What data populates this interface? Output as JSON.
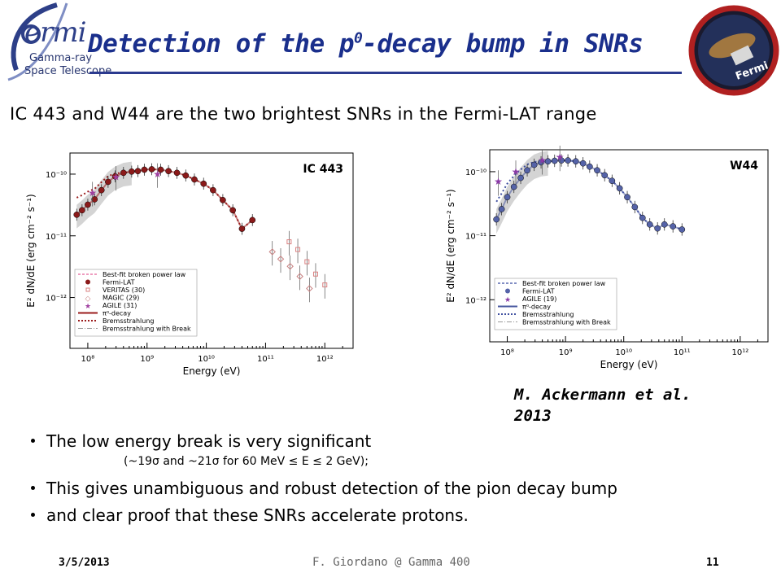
{
  "header": {
    "logo_text": "ermi",
    "logo_sub1": "Gamma-ray",
    "logo_sub2": "Space Telescope",
    "title_main": "Detection of the p",
    "title_sup": "0",
    "title_rest": "-decay bump in SNRs",
    "badge_text": "Fermi"
  },
  "subtitle": "IC 443 and W44 are the two brightest SNRs in the Fermi-LAT range",
  "chart_data": [
    {
      "type": "scatter",
      "title": "IC 443",
      "xlabel": "Energy (eV)",
      "ylabel": "E² dN/dE (erg cm⁻² s⁻¹)",
      "xscale": "log",
      "yscale": "log",
      "xlim": [
        50000000.0,
        3000000000000.0
      ],
      "ylim": [
        1.5e-13,
        2.2e-10
      ],
      "xticks": [
        "10⁸",
        "10⁹",
        "10¹⁰",
        "10¹¹",
        "10¹²"
      ],
      "yticks": [
        "10⁻¹⁰",
        "10⁻¹¹",
        "10⁻¹²"
      ],
      "legend_position": "bottom-left",
      "legend": [
        "Best-fit broken power law",
        "Fermi-LAT",
        "VERITAS (30)",
        "MAGIC (29)",
        "AGILE (31)",
        "π⁰-decay",
        "Bremsstrahlung",
        "Bremsstrahlung with Break"
      ],
      "colors": {
        "fermi": "#8b1a1a",
        "veritas": "#d98080",
        "magic": "#c88080",
        "agile": "#a040a0",
        "pion": "#9b1c1c",
        "brems": "#9b1c1c",
        "brems_break": "#999999",
        "band": "#cccccc",
        "bpl": "#e87aa8"
      },
      "series": [
        {
          "name": "Fermi-LAT",
          "x": [
            65000000.0,
            80000000.0,
            100000000.0,
            130000000.0,
            170000000.0,
            220000000.0,
            290000000.0,
            400000000.0,
            550000000.0,
            700000000.0,
            900000000.0,
            1200000000.0,
            1700000000.0,
            2300000000.0,
            3200000000.0,
            4500000000.0,
            6300000000.0,
            9000000000.0,
            13000000000.0,
            19000000000.0,
            28000000000.0,
            40000000000.0,
            60000000000.0
          ],
          "y": [
            2.2e-11,
            2.6e-11,
            3.2e-11,
            3.9e-11,
            5.5e-11,
            7.5e-11,
            9.2e-11,
            1.05e-10,
            1.1e-10,
            1.12e-10,
            1.18e-10,
            1.2e-10,
            1.18e-10,
            1.12e-10,
            1.05e-10,
            9.5e-11,
            8.2e-11,
            7e-11,
            5.5e-11,
            3.8e-11,
            2.6e-11,
            1.3e-11,
            1.8e-11
          ]
        },
        {
          "name": "VERITAS (30)",
          "x": [
            250000000000.0,
            350000000000.0,
            500000000000.0,
            700000000000.0,
            1000000000000.0
          ],
          "y": [
            8e-12,
            6e-12,
            3.8e-12,
            2.4e-12,
            1.6e-12
          ]
        },
        {
          "name": "MAGIC (29)",
          "x": [
            130000000000.0,
            180000000000.0,
            260000000000.0,
            380000000000.0,
            550000000000.0
          ],
          "y": [
            5.5e-12,
            4.2e-12,
            3.2e-12,
            2.2e-12,
            1.4e-12
          ]
        },
        {
          "name": "AGILE (31)",
          "x": [
            120000000.0,
            300000000.0,
            1500000000.0
          ],
          "y": [
            5e-11,
            9e-11,
            1e-10
          ]
        }
      ]
    },
    {
      "type": "scatter",
      "title": "W44",
      "xlabel": "Energy (eV)",
      "ylabel": "E² dN/dE (erg cm⁻² s⁻¹)",
      "xscale": "log",
      "yscale": "log",
      "xlim": [
        50000000.0,
        3000000000000.0
      ],
      "ylim": [
        2.2e-13,
        2.2e-10
      ],
      "xticks": [
        "10⁸",
        "10⁹",
        "10¹⁰",
        "10¹¹",
        "10¹²"
      ],
      "yticks": [
        "10⁻¹⁰",
        "10⁻¹¹",
        "10⁻¹²"
      ],
      "legend_position": "bottom-left",
      "legend": [
        "Best-fit broken power law",
        "Fermi-LAT",
        "AGILE (19)",
        "π⁰-decay",
        "Bremsstrahlung",
        "Bremsstrahlung with Break"
      ],
      "colors": {
        "fermi": "#5563a8",
        "agile": "#8a3aa6",
        "pion": "#4a5aa0",
        "brems": "#4050a0",
        "brems_break": "#999999",
        "band": "#cccccc",
        "bpl": "#5a6ab0"
      },
      "series": [
        {
          "name": "Fermi-LAT",
          "x": [
            65000000.0,
            80000000.0,
            100000000.0,
            130000000.0,
            170000000.0,
            220000000.0,
            290000000.0,
            380000000.0,
            500000000.0,
            650000000.0,
            850000000.0,
            1100000000.0,
            1500000000.0,
            2000000000.0,
            2600000000.0,
            3500000000.0,
            4700000000.0,
            6300000000.0,
            8500000000.0,
            11500000000.0,
            15500000000.0,
            21000000000.0,
            28000000000.0,
            38000000000.0,
            50000000000.0,
            70000000000.0,
            100000000000.0
          ],
          "y": [
            1.8e-11,
            2.6e-11,
            4e-11,
            5.8e-11,
            8e-11,
            1.05e-10,
            1.28e-10,
            1.4e-10,
            1.45e-10,
            1.48e-10,
            1.5e-10,
            1.5e-10,
            1.45e-10,
            1.35e-10,
            1.2e-10,
            1.05e-10,
            8.8e-11,
            7.2e-11,
            5.5e-11,
            4e-11,
            2.8e-11,
            1.9e-11,
            1.5e-11,
            1.3e-11,
            1.5e-11,
            1.4e-11,
            1.25e-11
          ]
        },
        {
          "name": "AGILE (19)",
          "x": [
            70000000.0,
            140000000.0,
            400000000.0,
            800000000.0
          ],
          "y": [
            7e-11,
            1e-10,
            1.5e-10,
            1.7e-10
          ]
        }
      ]
    }
  ],
  "citation": "M. Ackermann et al. 2013",
  "bullets": [
    "The low energy break is very significant",
    "This gives unambiguous and robust detection of the pion decay bump",
    "and clear proof that these SNRs accelerate protons."
  ],
  "bullet1_sub": "(~19σ  and ~21σ for 60 MeV ≤ E ≤ 2 GeV);",
  "footer": {
    "date": "3/5/2013",
    "center": "F. Giordano @ Gamma 400",
    "page": "11"
  }
}
